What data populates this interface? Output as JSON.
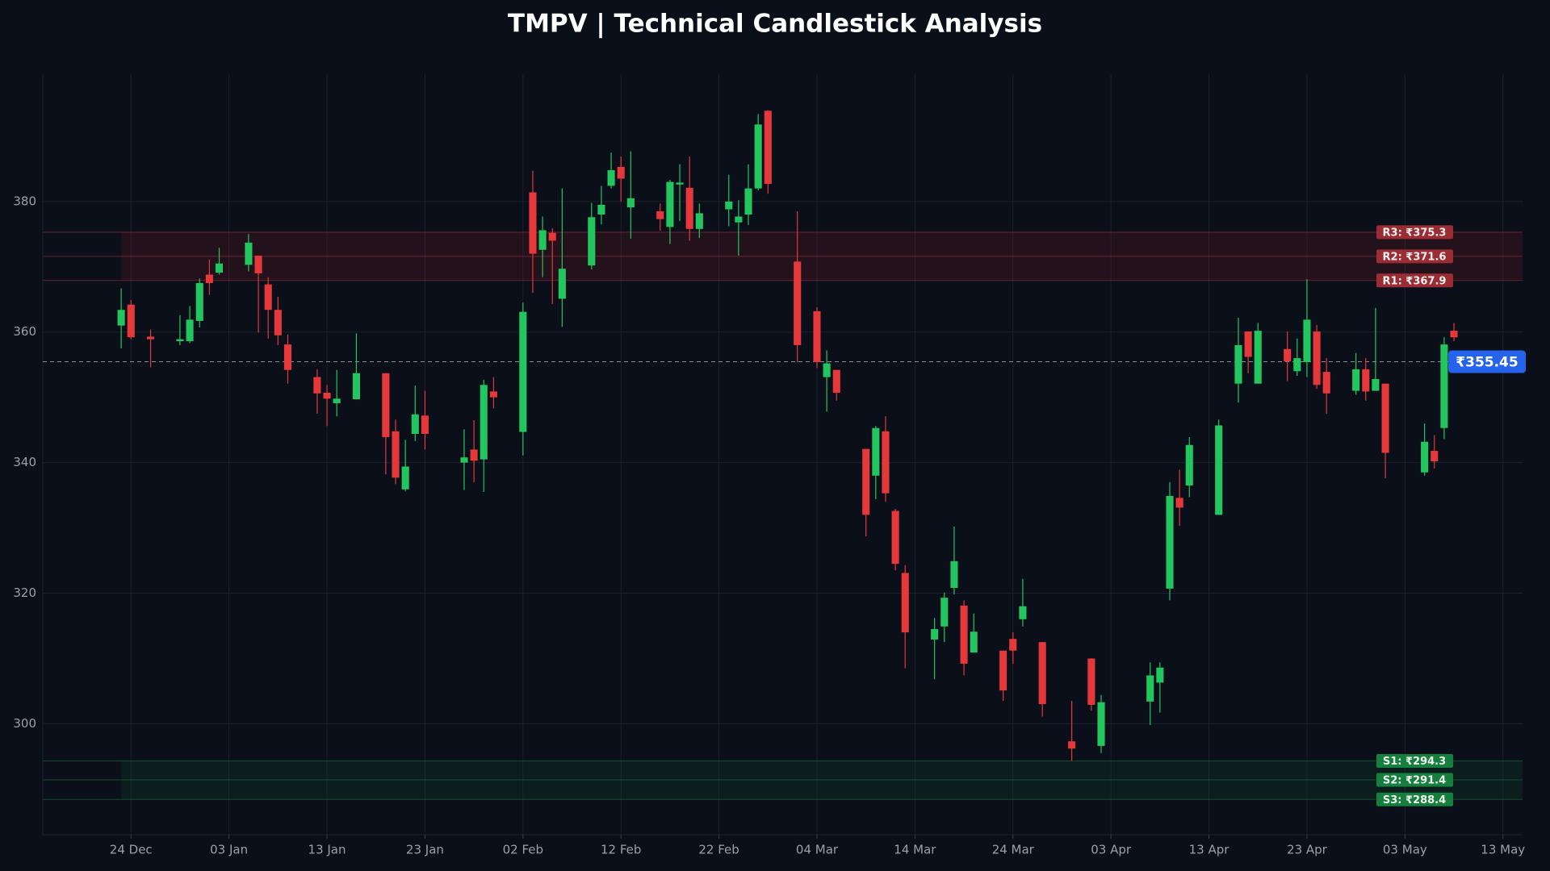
{
  "chart_data": {
    "type": "candlestick",
    "title": "TMPV | Technical Candlestick Analysis",
    "x": [
      "12-23",
      "12-24",
      "12-26",
      "12-29",
      "12-30",
      "12-31",
      "01-01",
      "01-02",
      "01-05",
      "01-06",
      "01-07",
      "01-08",
      "01-09",
      "01-12",
      "01-13",
      "01-14",
      "01-16",
      "01-19",
      "01-20",
      "01-21",
      "01-22",
      "01-23",
      "01-27",
      "01-28",
      "01-29",
      "01-30",
      "02-02",
      "02-03",
      "02-04",
      "02-05",
      "02-06",
      "02-09",
      "02-10",
      "02-11",
      "02-12",
      "02-13",
      "02-16",
      "02-17",
      "02-18",
      "02-19",
      "02-20",
      "02-23",
      "02-24",
      "02-25",
      "02-26",
      "02-27",
      "03-02",
      "03-04",
      "03-05",
      "03-06",
      "03-09",
      "03-10",
      "03-11",
      "03-12",
      "03-13",
      "03-16",
      "03-17",
      "03-18",
      "03-19",
      "03-20",
      "03-23",
      "03-24",
      "03-25",
      "03-27",
      "03-30",
      "04-01",
      "04-02",
      "04-07",
      "04-08",
      "04-09",
      "04-10",
      "04-11",
      "04-14",
      "04-16",
      "04-17",
      "04-18",
      "04-21",
      "04-22",
      "04-23",
      "04-24",
      "04-25",
      "04-28",
      "04-29",
      "04-30",
      "05-01",
      "05-05",
      "05-06",
      "05-07",
      "05-08"
    ],
    "open": [
      361.0,
      364.2,
      359.3,
      358.6,
      358.6,
      361.7,
      368.8,
      369.1,
      370.3,
      371.7,
      367.3,
      363.4,
      358.1,
      353.1,
      350.7,
      349.1,
      349.7,
      353.7,
      344.8,
      335.9,
      344.4,
      347.2,
      340.0,
      342.0,
      340.5,
      350.9,
      344.7,
      381.4,
      372.6,
      375.2,
      365.1,
      370.2,
      378.0,
      382.4,
      385.3,
      379.1,
      378.5,
      376.1,
      382.6,
      382.1,
      375.8,
      378.8,
      376.8,
      378.0,
      382.0,
      393.9,
      370.8,
      363.2,
      353.1,
      354.2,
      342.1,
      338.0,
      344.8,
      332.6,
      323.1,
      312.9,
      314.9,
      320.8,
      318.1,
      310.9,
      311.2,
      313.0,
      316.0,
      312.5,
      297.3,
      310.0,
      296.6,
      303.4,
      306.3,
      320.7,
      334.6,
      336.5,
      332.0,
      352.1,
      360.1,
      352.1,
      357.4,
      354.0,
      355.4,
      360.1,
      353.9,
      351.0,
      354.3,
      351.0,
      352.1,
      338.5,
      341.8,
      345.3,
      360.2
    ],
    "high": [
      366.7,
      364.9,
      360.4,
      362.6,
      364.0,
      368.2,
      371.1,
      372.9,
      375.0,
      371.7,
      368.4,
      365.4,
      359.6,
      354.3,
      351.9,
      354.2,
      359.8,
      353.7,
      346.6,
      343.5,
      351.8,
      351.0,
      345.1,
      346.5,
      352.7,
      353.1,
      364.5,
      384.7,
      377.7,
      375.9,
      382.0,
      379.8,
      382.4,
      387.5,
      386.9,
      387.7,
      379.7,
      383.3,
      385.7,
      386.9,
      379.7,
      384.1,
      380.2,
      385.7,
      393.4,
      394.0,
      378.5,
      363.8,
      357.2,
      354.2,
      342.1,
      345.6,
      347.1,
      332.9,
      324.3,
      316.2,
      320.1,
      330.2,
      318.9,
      316.9,
      311.2,
      314.0,
      322.2,
      312.5,
      303.5,
      310.0,
      304.4,
      309.4,
      309.4,
      337.0,
      338.9,
      343.9,
      346.6,
      362.2,
      360.1,
      361.4,
      360.1,
      359.0,
      368.1,
      361.1,
      356.0,
      356.8,
      356.0,
      363.7,
      352.1,
      346.0,
      344.2,
      359.2,
      361.4
    ],
    "low": [
      357.5,
      358.9,
      354.6,
      358.0,
      358.3,
      360.7,
      365.7,
      368.8,
      369.3,
      359.9,
      359.0,
      358.0,
      352.1,
      347.5,
      345.6,
      347.1,
      349.7,
      338.2,
      336.7,
      335.6,
      343.3,
      342.0,
      335.8,
      337.0,
      335.5,
      348.3,
      341.1,
      366.0,
      368.4,
      364.3,
      360.8,
      369.6,
      376.5,
      382.0,
      380.0,
      374.3,
      375.5,
      373.5,
      377.0,
      374.0,
      374.4,
      376.2,
      371.7,
      376.4,
      381.7,
      381.2,
      355.4,
      354.5,
      347.8,
      349.5,
      328.7,
      334.4,
      334.0,
      323.5,
      308.5,
      306.8,
      312.5,
      319.8,
      307.4,
      310.9,
      303.5,
      309.2,
      314.9,
      301.1,
      294.3,
      302.0,
      295.5,
      299.8,
      301.7,
      318.9,
      330.3,
      334.7,
      332.0,
      349.2,
      353.7,
      352.1,
      352.5,
      353.3,
      353.1,
      351.3,
      347.5,
      350.4,
      349.5,
      351.0,
      337.6,
      338.0,
      339.1,
      343.6,
      358.6
    ],
    "close": [
      363.4,
      359.2,
      358.9,
      358.9,
      361.9,
      367.5,
      367.5,
      370.5,
      373.7,
      369.0,
      363.4,
      359.5,
      354.2,
      350.6,
      349.8,
      349.8,
      353.7,
      343.9,
      337.7,
      339.4,
      347.4,
      344.4,
      340.8,
      340.3,
      351.9,
      350.0,
      363.1,
      372.0,
      375.6,
      374.0,
      369.7,
      377.6,
      379.5,
      384.8,
      383.5,
      380.5,
      377.3,
      383.0,
      382.9,
      375.8,
      378.2,
      380.0,
      377.7,
      382.0,
      391.8,
      382.7,
      358.0,
      355.4,
      355.2,
      350.7,
      332.0,
      345.3,
      335.3,
      324.5,
      314.0,
      314.5,
      319.3,
      324.9,
      309.2,
      314.1,
      305.1,
      311.2,
      318.0,
      303.0,
      296.2,
      302.9,
      303.3,
      307.4,
      308.6,
      334.9,
      333.1,
      342.7,
      345.7,
      358.0,
      356.2,
      360.2,
      355.5,
      356.0,
      361.9,
      351.9,
      350.6,
      354.3,
      350.9,
      352.8,
      341.5,
      343.2,
      340.2,
      358.1,
      359.2
    ],
    "up_color": "#22c55e",
    "down_color": "#e5383b",
    "resistance": [
      {
        "value": 375.3,
        "label": "R3: ₹375.3"
      },
      {
        "value": 371.6,
        "label": "R2: ₹371.6"
      },
      {
        "value": 367.9,
        "label": "R1: ₹367.9"
      }
    ],
    "support": [
      {
        "value": 294.3,
        "label": "S1: ₹294.3"
      },
      {
        "value": 291.4,
        "label": "S2: ₹291.4"
      },
      {
        "value": 288.4,
        "label": "S3: ₹288.4"
      }
    ],
    "current_price": {
      "value": 355.45,
      "label": "₹355.45"
    },
    "xlim": [
      "12-15",
      "05-15"
    ],
    "xticks": [
      {
        "value": "12-24",
        "label": "24 Dec"
      },
      {
        "value": "01-03",
        "label": "03 Jan"
      },
      {
        "value": "01-13",
        "label": "13 Jan"
      },
      {
        "value": "01-23",
        "label": "23 Jan"
      },
      {
        "value": "02-02",
        "label": "02 Feb"
      },
      {
        "value": "02-12",
        "label": "12 Feb"
      },
      {
        "value": "02-22",
        "label": "22 Feb"
      },
      {
        "value": "03-04",
        "label": "04 Mar"
      },
      {
        "value": "03-14",
        "label": "14 Mar"
      },
      {
        "value": "03-24",
        "label": "24 Mar"
      },
      {
        "value": "04-03",
        "label": "03 Apr"
      },
      {
        "value": "04-13",
        "label": "13 Apr"
      },
      {
        "value": "04-23",
        "label": "23 Apr"
      },
      {
        "value": "05-03",
        "label": "03 May"
      },
      {
        "value": "05-13",
        "label": "13 May"
      }
    ],
    "ylim": [
      283,
      399.5
    ],
    "yticks": [
      300,
      320,
      340,
      360,
      380
    ],
    "grid": true
  }
}
